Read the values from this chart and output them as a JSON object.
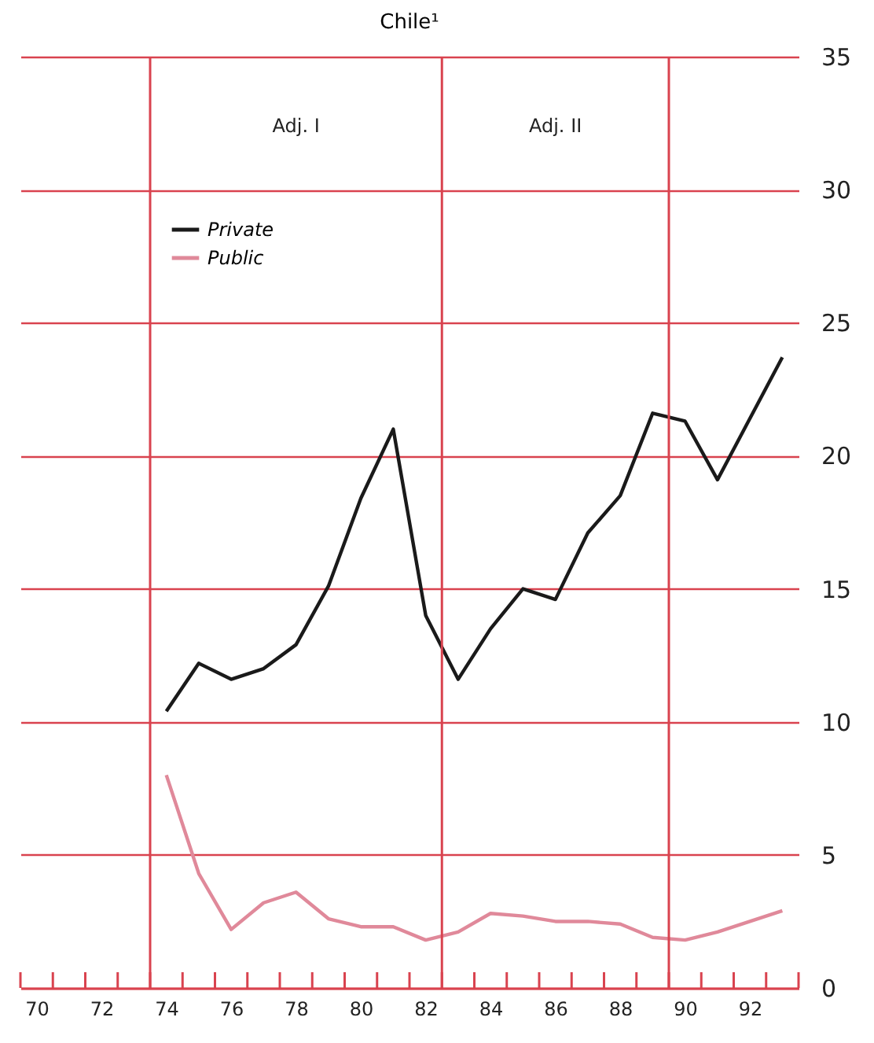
{
  "chart_data": {
    "type": "line",
    "title": "Chile¹",
    "x": [
      74,
      75,
      76,
      77,
      78,
      79,
      80,
      81,
      82,
      83,
      84,
      85,
      86,
      87,
      88,
      89,
      90,
      91,
      92,
      93
    ],
    "series": [
      {
        "name": "Private",
        "color": "#1a1a1a",
        "values": [
          10.4,
          12.2,
          11.6,
          12.0,
          12.9,
          15.1,
          18.4,
          21.0,
          14.0,
          11.6,
          13.5,
          15.0,
          14.6,
          17.1,
          18.5,
          21.6,
          21.3,
          19.1,
          21.4,
          23.7
        ]
      },
      {
        "name": "Public",
        "color": "#e0899a",
        "values": [
          8.0,
          4.3,
          2.2,
          3.2,
          3.6,
          2.6,
          2.3,
          2.3,
          1.8,
          2.1,
          2.8,
          2.7,
          2.5,
          2.5,
          2.4,
          1.9,
          1.8,
          2.1,
          2.5,
          2.9
        ]
      }
    ],
    "xlim": [
      69.5,
      93.5
    ],
    "xticks": [
      70,
      72,
      74,
      76,
      78,
      80,
      82,
      84,
      86,
      88,
      90,
      92,
      {
        "value": 69.5,
        "label": null
      },
      {
        "value": 70.5,
        "label": null
      },
      {
        "value": 71.5,
        "label": null
      },
      {
        "value": 72.5,
        "label": null
      },
      {
        "value": 73.5,
        "label": null
      },
      {
        "value": 74.5,
        "label": null
      },
      {
        "value": 75.5,
        "label": null
      },
      {
        "value": 76.5,
        "label": null
      },
      {
        "value": 77.5,
        "label": null
      },
      {
        "value": 78.5,
        "label": null
      },
      {
        "value": 79.5,
        "label": null
      },
      {
        "value": 80.5,
        "label": null
      },
      {
        "value": 81.5,
        "label": null
      },
      {
        "value": 82.5,
        "label": null
      },
      {
        "value": 83.5,
        "label": null
      },
      {
        "value": 84.5,
        "label": null
      },
      {
        "value": 85.5,
        "label": null
      },
      {
        "value": 86.5,
        "label": null
      },
      {
        "value": 87.5,
        "label": null
      },
      {
        "value": 88.5,
        "label": null
      },
      {
        "value": 89.5,
        "label": null
      },
      {
        "value": 90.5,
        "label": null
      },
      {
        "value": 91.5,
        "label": null
      },
      {
        "value": 92.5,
        "label": null
      },
      {
        "value": 93.5,
        "label": null
      }
    ],
    "ylim": [
      0,
      35
    ],
    "yticks": [
      0,
      5,
      10,
      15,
      20,
      25,
      30,
      35
    ],
    "grid": "y",
    "legend": "top left",
    "line_style": "solid",
    "ref_lines": [
      {
        "axis": "x",
        "value": 73.5,
        "color": "#d9434f"
      },
      {
        "axis": "x",
        "value": 82.5,
        "color": "#d9434f"
      },
      {
        "axis": "x",
        "value": 89.5,
        "color": "#d9434f"
      }
    ],
    "annotations": [
      "Adj. I",
      "Adj. II"
    ]
  }
}
